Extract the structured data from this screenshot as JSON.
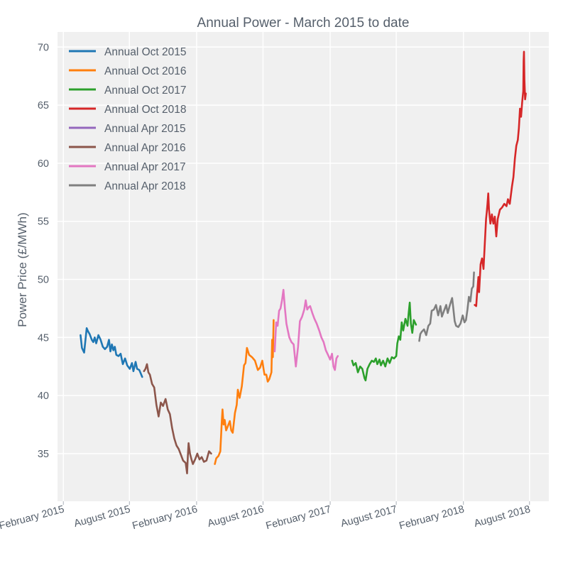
{
  "chart_data": {
    "type": "line",
    "title": "Annual Power - March 2015 to date",
    "xlabel": "",
    "ylabel": "Power Price (£/MWh)",
    "ylim": [
      30.9,
      71.3
    ],
    "xlim": [
      "2015-01-16",
      "2018-09-23"
    ],
    "grid": true,
    "legend_position": "top-left",
    "yticks": [
      35,
      40,
      45,
      50,
      55,
      60,
      65,
      70
    ],
    "xticks": [
      {
        "date": "2015-02-01",
        "label": "February 2015"
      },
      {
        "date": "2015-08-01",
        "label": "August 2015"
      },
      {
        "date": "2016-02-01",
        "label": "February 2016"
      },
      {
        "date": "2016-08-01",
        "label": "August 2016"
      },
      {
        "date": "2017-02-01",
        "label": "February 2017"
      },
      {
        "date": "2017-08-01",
        "label": "August 2017"
      },
      {
        "date": "2018-02-01",
        "label": "February 2018"
      },
      {
        "date": "2018-08-01",
        "label": "August 2018"
      }
    ],
    "series": [
      {
        "name": "Annual Oct 2015",
        "color": "#1f77b4",
        "points": [
          [
            "2015-03-20",
            45.2
          ],
          [
            "2015-03-24",
            44.1
          ],
          [
            "2015-03-30",
            43.7
          ],
          [
            "2015-04-06",
            45.8
          ],
          [
            "2015-04-10",
            45.5
          ],
          [
            "2015-04-14",
            45.3
          ],
          [
            "2015-04-20",
            44.8
          ],
          [
            "2015-04-24",
            44.6
          ],
          [
            "2015-04-28",
            45.0
          ],
          [
            "2015-05-02",
            44.5
          ],
          [
            "2015-05-08",
            45.2
          ],
          [
            "2015-05-14",
            44.8
          ],
          [
            "2015-05-20",
            44.2
          ],
          [
            "2015-05-26",
            44.0
          ],
          [
            "2015-06-01",
            44.2
          ],
          [
            "2015-06-06",
            44.8
          ],
          [
            "2015-06-10",
            43.8
          ],
          [
            "2015-06-14",
            44.4
          ],
          [
            "2015-06-18",
            43.9
          ],
          [
            "2015-06-22",
            44.2
          ],
          [
            "2015-06-26",
            43.5
          ],
          [
            "2015-07-02",
            43.4
          ],
          [
            "2015-07-08",
            43.6
          ],
          [
            "2015-07-14",
            42.7
          ],
          [
            "2015-07-20",
            43.2
          ],
          [
            "2015-07-26",
            42.6
          ],
          [
            "2015-08-02",
            42.3
          ],
          [
            "2015-08-08",
            42.8
          ],
          [
            "2015-08-12",
            42.1
          ],
          [
            "2015-08-18",
            42.9
          ],
          [
            "2015-08-22",
            42.3
          ],
          [
            "2015-08-28",
            42.2
          ],
          [
            "2015-09-05",
            41.6
          ]
        ]
      },
      {
        "name": "Annual Oct 2016",
        "color": "#ff7f0e",
        "points": [
          [
            "2016-03-22",
            34.1
          ],
          [
            "2016-03-26",
            34.6
          ],
          [
            "2016-04-01",
            34.8
          ],
          [
            "2016-04-06",
            35.2
          ],
          [
            "2016-04-10",
            37.8
          ],
          [
            "2016-04-12",
            38.8
          ],
          [
            "2016-04-15",
            37.5
          ],
          [
            "2016-04-18",
            37.9
          ],
          [
            "2016-04-22",
            37.0
          ],
          [
            "2016-04-27",
            37.4
          ],
          [
            "2016-05-02",
            37.8
          ],
          [
            "2016-05-06",
            37.0
          ],
          [
            "2016-05-10",
            36.8
          ],
          [
            "2016-05-16",
            38.5
          ],
          [
            "2016-05-21",
            39.2
          ],
          [
            "2016-05-24",
            40.5
          ],
          [
            "2016-05-29",
            39.8
          ],
          [
            "2016-06-04",
            40.8
          ],
          [
            "2016-06-10",
            42.6
          ],
          [
            "2016-06-14",
            42.8
          ],
          [
            "2016-06-18",
            44.1
          ],
          [
            "2016-06-24",
            43.5
          ],
          [
            "2016-07-02",
            43.3
          ],
          [
            "2016-07-10",
            43.0
          ],
          [
            "2016-07-18",
            42.2
          ],
          [
            "2016-07-24",
            42.4
          ],
          [
            "2016-07-30",
            43.0
          ],
          [
            "2016-08-05",
            41.8
          ],
          [
            "2016-08-10",
            41.8
          ],
          [
            "2016-08-14",
            41.2
          ],
          [
            "2016-08-18",
            41.4
          ],
          [
            "2016-08-24",
            42.0
          ],
          [
            "2016-08-26",
            44.8
          ],
          [
            "2016-08-28",
            43.3
          ],
          [
            "2016-08-30",
            46.5
          ]
        ]
      },
      {
        "name": "Annual Oct 2017",
        "color": "#2ca02c",
        "points": [
          [
            "2017-04-02",
            43.0
          ],
          [
            "2017-04-06",
            42.6
          ],
          [
            "2017-04-12",
            42.8
          ],
          [
            "2017-04-18",
            42.0
          ],
          [
            "2017-04-24",
            42.5
          ],
          [
            "2017-04-30",
            42.3
          ],
          [
            "2017-05-06",
            41.5
          ],
          [
            "2017-05-09",
            41.3
          ],
          [
            "2017-05-14",
            42.3
          ],
          [
            "2017-05-20",
            42.7
          ],
          [
            "2017-05-26",
            43.0
          ],
          [
            "2017-06-01",
            42.9
          ],
          [
            "2017-06-06",
            43.2
          ],
          [
            "2017-06-10",
            42.7
          ],
          [
            "2017-06-16",
            43.1
          ],
          [
            "2017-06-20",
            42.6
          ],
          [
            "2017-06-26",
            43.0
          ],
          [
            "2017-07-02",
            42.5
          ],
          [
            "2017-07-08",
            43.2
          ],
          [
            "2017-07-14",
            42.8
          ],
          [
            "2017-07-20",
            43.3
          ],
          [
            "2017-07-26",
            43.2
          ],
          [
            "2017-08-01",
            43.4
          ],
          [
            "2017-08-04",
            44.5
          ],
          [
            "2017-08-08",
            45.1
          ],
          [
            "2017-08-12",
            44.8
          ],
          [
            "2017-08-16",
            46.3
          ],
          [
            "2017-08-20",
            45.6
          ],
          [
            "2017-08-26",
            46.6
          ],
          [
            "2017-09-01",
            46.0
          ],
          [
            "2017-09-04",
            47.1
          ],
          [
            "2017-09-07",
            48.0
          ],
          [
            "2017-09-10",
            46.2
          ],
          [
            "2017-09-14",
            45.4
          ],
          [
            "2017-09-18",
            46.5
          ],
          [
            "2017-09-24",
            46.1
          ]
        ]
      },
      {
        "name": "Annual Oct 2018",
        "color": "#d62728",
        "points": [
          [
            "2018-03-04",
            47.8
          ],
          [
            "2018-03-08",
            47.7
          ],
          [
            "2018-03-10",
            48.6
          ],
          [
            "2018-03-12",
            49.3
          ],
          [
            "2018-03-14",
            50.2
          ],
          [
            "2018-03-16",
            48.9
          ],
          [
            "2018-03-20",
            51.3
          ],
          [
            "2018-03-24",
            51.8
          ],
          [
            "2018-03-28",
            50.9
          ],
          [
            "2018-04-01",
            53.3
          ],
          [
            "2018-04-04",
            55.2
          ],
          [
            "2018-04-06",
            55.8
          ],
          [
            "2018-04-08",
            56.5
          ],
          [
            "2018-04-10",
            57.4
          ],
          [
            "2018-04-12",
            56.0
          ],
          [
            "2018-04-16",
            54.8
          ],
          [
            "2018-04-20",
            55.6
          ],
          [
            "2018-04-24",
            54.8
          ],
          [
            "2018-04-28",
            55.4
          ],
          [
            "2018-05-02",
            53.7
          ],
          [
            "2018-05-06",
            55.2
          ],
          [
            "2018-05-12",
            56.0
          ],
          [
            "2018-05-18",
            56.2
          ],
          [
            "2018-05-24",
            56.5
          ],
          [
            "2018-05-30",
            56.3
          ],
          [
            "2018-06-03",
            56.9
          ],
          [
            "2018-06-08",
            56.5
          ],
          [
            "2018-06-14",
            58.0
          ],
          [
            "2018-06-18",
            58.8
          ],
          [
            "2018-06-22",
            60.4
          ],
          [
            "2018-06-26",
            61.5
          ],
          [
            "2018-06-30",
            62.0
          ],
          [
            "2018-07-03",
            63.0
          ],
          [
            "2018-07-06",
            64.7
          ],
          [
            "2018-07-09",
            64.0
          ],
          [
            "2018-07-12",
            65.3
          ],
          [
            "2018-07-15",
            66.2
          ],
          [
            "2018-07-16",
            68.8
          ],
          [
            "2018-07-17",
            69.6
          ],
          [
            "2018-07-18",
            67.2
          ],
          [
            "2018-07-20",
            65.5
          ],
          [
            "2018-07-22",
            66.0
          ]
        ]
      },
      {
        "name": "Annual Apr 2015",
        "color": "#9467bd",
        "points": []
      },
      {
        "name": "Annual Apr 2016",
        "color": "#8c564b",
        "points": [
          [
            "2015-09-10",
            42.1
          ],
          [
            "2015-09-14",
            42.3
          ],
          [
            "2015-09-18",
            42.7
          ],
          [
            "2015-09-22",
            42.0
          ],
          [
            "2015-09-26",
            41.8
          ],
          [
            "2015-10-02",
            41.0
          ],
          [
            "2015-10-08",
            40.7
          ],
          [
            "2015-10-14",
            39.2
          ],
          [
            "2015-10-20",
            38.2
          ],
          [
            "2015-10-26",
            39.4
          ],
          [
            "2015-11-01",
            39.1
          ],
          [
            "2015-11-08",
            39.7
          ],
          [
            "2015-11-14",
            38.8
          ],
          [
            "2015-11-20",
            38.4
          ],
          [
            "2015-11-26",
            37.2
          ],
          [
            "2015-12-02",
            36.3
          ],
          [
            "2015-12-08",
            35.7
          ],
          [
            "2015-12-14",
            35.4
          ],
          [
            "2015-12-20",
            34.9
          ],
          [
            "2015-12-26",
            34.4
          ],
          [
            "2016-01-02",
            34.2
          ],
          [
            "2016-01-06",
            33.3
          ],
          [
            "2016-01-08",
            34.7
          ],
          [
            "2016-01-10",
            35.9
          ],
          [
            "2016-01-14",
            35.0
          ],
          [
            "2016-01-18",
            34.5
          ],
          [
            "2016-01-22",
            34.1
          ],
          [
            "2016-01-28",
            34.5
          ],
          [
            "2016-02-03",
            35.0
          ],
          [
            "2016-02-09",
            34.5
          ],
          [
            "2016-02-15",
            34.7
          ],
          [
            "2016-02-21",
            34.3
          ],
          [
            "2016-02-28",
            34.4
          ],
          [
            "2016-03-06",
            35.2
          ],
          [
            "2016-03-12",
            35.0
          ]
        ]
      },
      {
        "name": "Annual Apr 2017",
        "color": "#e377c2",
        "points": [
          [
            "2016-09-02",
            43.8
          ],
          [
            "2016-09-06",
            46.3
          ],
          [
            "2016-09-10",
            46.0
          ],
          [
            "2016-09-14",
            47.3
          ],
          [
            "2016-09-18",
            47.5
          ],
          [
            "2016-09-22",
            48.2
          ],
          [
            "2016-09-26",
            49.1
          ],
          [
            "2016-09-30",
            47.5
          ],
          [
            "2016-10-04",
            46.2
          ],
          [
            "2016-10-08",
            45.6
          ],
          [
            "2016-10-12",
            45.0
          ],
          [
            "2016-10-18",
            44.6
          ],
          [
            "2016-10-24",
            44.4
          ],
          [
            "2016-10-30",
            42.5
          ],
          [
            "2016-11-05",
            44.2
          ],
          [
            "2016-11-10",
            46.4
          ],
          [
            "2016-11-16",
            46.8
          ],
          [
            "2016-11-22",
            47.4
          ],
          [
            "2016-11-26",
            48.2
          ],
          [
            "2016-11-30",
            47.4
          ],
          [
            "2016-12-04",
            47.6
          ],
          [
            "2016-12-08",
            47.7
          ],
          [
            "2016-12-14",
            47.1
          ],
          [
            "2016-12-20",
            46.6
          ],
          [
            "2016-12-26",
            46.2
          ],
          [
            "2017-01-02",
            45.6
          ],
          [
            "2017-01-08",
            45.0
          ],
          [
            "2017-01-14",
            44.6
          ],
          [
            "2017-01-20",
            43.9
          ],
          [
            "2017-01-26",
            43.5
          ],
          [
            "2017-02-01",
            43.1
          ],
          [
            "2017-02-06",
            43.6
          ],
          [
            "2017-02-10",
            42.5
          ],
          [
            "2017-02-14",
            42.2
          ],
          [
            "2017-02-18",
            43.2
          ],
          [
            "2017-02-22",
            43.4
          ]
        ]
      },
      {
        "name": "Annual Apr 2018",
        "color": "#7f7f7f",
        "points": [
          [
            "2017-10-03",
            44.7
          ],
          [
            "2017-10-06",
            45.3
          ],
          [
            "2017-10-10",
            45.5
          ],
          [
            "2017-10-16",
            45.7
          ],
          [
            "2017-10-22",
            45.2
          ],
          [
            "2017-10-28",
            46.0
          ],
          [
            "2017-11-02",
            46.2
          ],
          [
            "2017-11-06",
            47.3
          ],
          [
            "2017-11-12",
            47.4
          ],
          [
            "2017-11-18",
            47.8
          ],
          [
            "2017-11-24",
            46.9
          ],
          [
            "2017-11-30",
            47.7
          ],
          [
            "2017-12-04",
            46.8
          ],
          [
            "2017-12-10",
            47.3
          ],
          [
            "2017-12-16",
            47.8
          ],
          [
            "2017-12-20",
            47.1
          ],
          [
            "2017-12-26",
            47.8
          ],
          [
            "2018-01-01",
            48.4
          ],
          [
            "2018-01-04",
            47.6
          ],
          [
            "2018-01-08",
            46.4
          ],
          [
            "2018-01-12",
            46.0
          ],
          [
            "2018-01-18",
            45.9
          ],
          [
            "2018-01-24",
            46.2
          ],
          [
            "2018-01-30",
            46.9
          ],
          [
            "2018-02-04",
            46.3
          ],
          [
            "2018-02-08",
            46.5
          ],
          [
            "2018-02-12",
            47.4
          ],
          [
            "2018-02-16",
            48.5
          ],
          [
            "2018-02-20",
            48.1
          ],
          [
            "2018-02-24",
            49.2
          ],
          [
            "2018-02-28",
            49.4
          ],
          [
            "2018-03-02",
            50.6
          ]
        ]
      }
    ]
  }
}
